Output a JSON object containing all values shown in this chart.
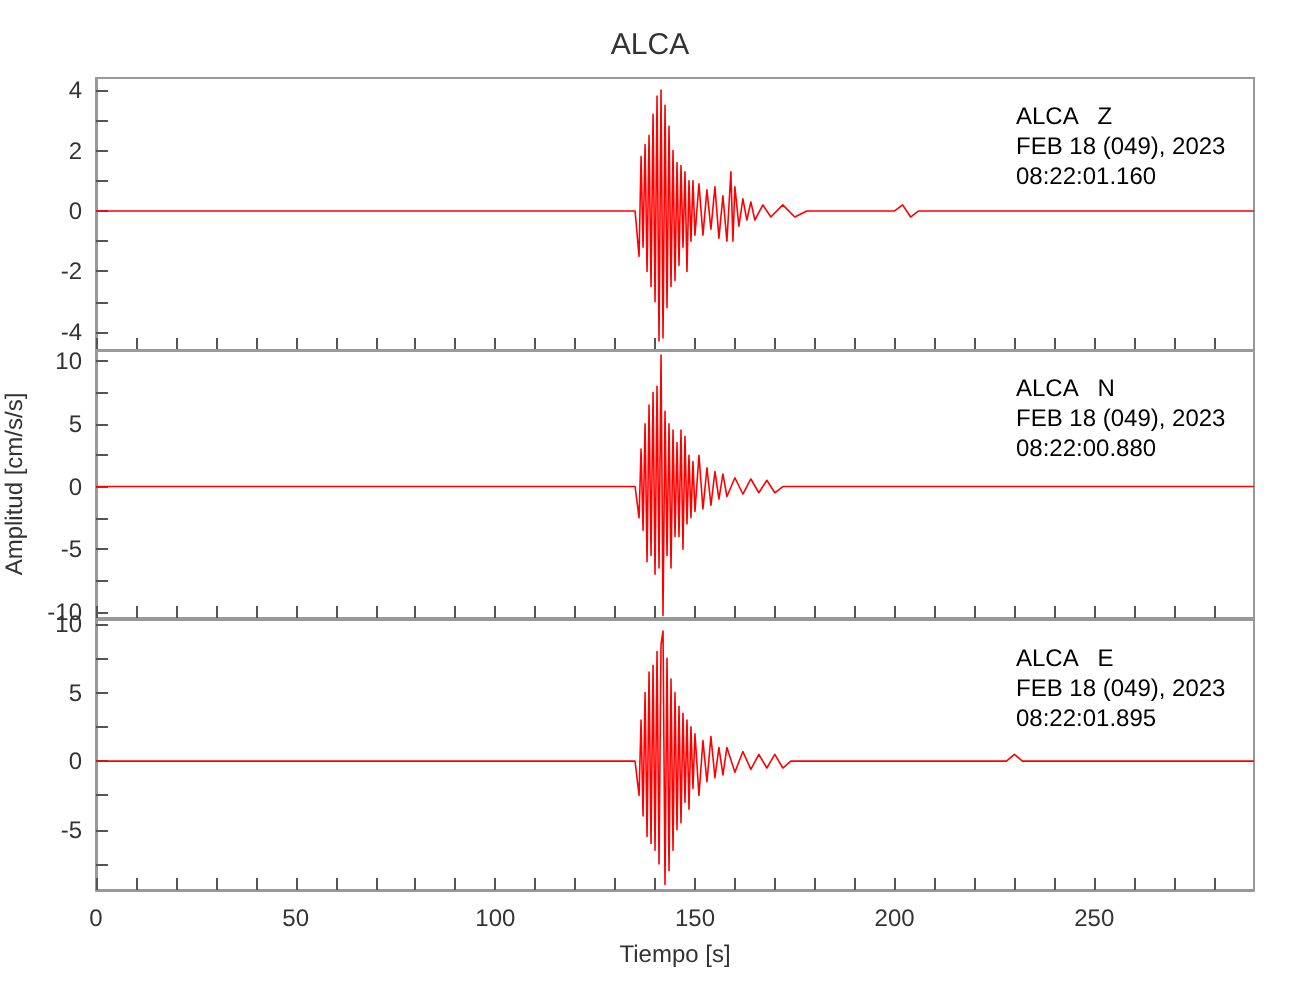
{
  "chart_data": [
    {
      "type": "line",
      "title": "ALCA",
      "marker": "none",
      "tick_labels": "y",
      "xlim": [
        0,
        290
      ],
      "xticks": [
        0,
        {
          "value": 10,
          "label": null
        },
        {
          "value": 20,
          "label": null
        },
        {
          "value": 30,
          "label": null
        },
        {
          "value": 40,
          "label": null
        },
        50,
        {
          "value": 60,
          "label": null
        },
        {
          "value": 70,
          "label": null
        },
        {
          "value": 80,
          "label": null
        },
        {
          "value": 90,
          "label": null
        },
        100,
        {
          "value": 110,
          "label": null
        },
        {
          "value": 120,
          "label": null
        },
        {
          "value": 130,
          "label": null
        },
        {
          "value": 140,
          "label": null
        },
        150,
        {
          "value": 160,
          "label": null
        },
        {
          "value": 170,
          "label": null
        },
        {
          "value": 180,
          "label": null
        },
        {
          "value": 190,
          "label": null
        },
        200,
        {
          "value": 210,
          "label": null
        },
        {
          "value": 220,
          "label": null
        },
        {
          "value": 230,
          "label": null
        },
        {
          "value": 240,
          "label": null
        },
        250,
        {
          "value": 260,
          "label": null
        },
        {
          "value": 270,
          "label": null
        },
        {
          "value": 280,
          "label": null
        }
      ],
      "ylim": [
        -4.6,
        4.4
      ],
      "yticks": [
        -4,
        {
          "value": -3,
          "label": null
        },
        -2,
        {
          "value": -1,
          "label": null
        },
        0,
        {
          "value": 1,
          "label": null
        },
        2,
        {
          "value": 3,
          "label": null
        },
        4
      ],
      "annotations": [
        "ALCA   Z",
        "FEB 18 (049), 2023",
        "08:22:01.160"
      ],
      "series": [
        {
          "color": "#ff0000",
          "x": [
            0,
            135,
            136,
            136.5,
            137,
            137.5,
            138,
            138.5,
            139,
            139.5,
            140,
            140.5,
            141,
            141.5,
            142,
            142.5,
            143,
            143.5,
            144,
            144.5,
            145,
            145.5,
            146,
            146.5,
            147,
            147.5,
            148,
            148.5,
            149,
            149.5,
            150,
            151,
            152,
            153,
            154,
            155,
            156,
            157,
            158,
            159,
            159.5,
            160,
            161,
            162,
            163,
            164,
            165,
            167,
            169,
            172,
            175,
            178,
            200,
            202,
            204,
            206,
            290
          ],
          "values": [
            0,
            0,
            -1.5,
            1.8,
            -1.2,
            2.2,
            -2.0,
            2.5,
            -2.5,
            3.2,
            -3.0,
            3.8,
            -4.3,
            4.0,
            -4.2,
            3.5,
            -3.2,
            2.8,
            -2.5,
            2.0,
            -2.3,
            1.6,
            -1.8,
            1.5,
            -1.2,
            1.3,
            -2.0,
            1.0,
            -1.0,
            1.0,
            -0.8,
            0.9,
            -0.8,
            0.7,
            -0.6,
            0.8,
            -0.9,
            0.5,
            -1.0,
            1.3,
            -1.0,
            0.8,
            -0.5,
            0.4,
            -0.3,
            0.3,
            -0.3,
            0.2,
            -0.2,
            0.2,
            -0.2,
            0,
            0,
            0.2,
            -0.2,
            0,
            0
          ]
        }
      ]
    },
    {
      "type": "line",
      "ylabel": "Amplitud [cm/s/s]",
      "marker": "none",
      "tick_labels": "y",
      "xlim": [
        0,
        290
      ],
      "xticks": [
        0,
        {
          "value": 10,
          "label": null
        },
        {
          "value": 20,
          "label": null
        },
        {
          "value": 30,
          "label": null
        },
        {
          "value": 40,
          "label": null
        },
        50,
        {
          "value": 60,
          "label": null
        },
        {
          "value": 70,
          "label": null
        },
        {
          "value": 80,
          "label": null
        },
        {
          "value": 90,
          "label": null
        },
        100,
        {
          "value": 110,
          "label": null
        },
        {
          "value": 120,
          "label": null
        },
        {
          "value": 130,
          "label": null
        },
        {
          "value": 140,
          "label": null
        },
        150,
        {
          "value": 160,
          "label": null
        },
        {
          "value": 170,
          "label": null
        },
        {
          "value": 180,
          "label": null
        },
        {
          "value": 190,
          "label": null
        },
        200,
        {
          "value": 210,
          "label": null
        },
        {
          "value": 220,
          "label": null
        },
        {
          "value": 230,
          "label": null
        },
        {
          "value": 240,
          "label": null
        },
        250,
        {
          "value": 260,
          "label": null
        },
        {
          "value": 270,
          "label": null
        },
        {
          "value": 280,
          "label": null
        }
      ],
      "ylim": [
        -10.5,
        10.9
      ],
      "yticks": [
        -10,
        {
          "value": -7.5,
          "label": null
        },
        -5,
        {
          "value": -2.5,
          "label": null
        },
        0,
        {
          "value": 2.5,
          "label": null
        },
        5,
        {
          "value": 7.5,
          "label": null
        },
        10
      ],
      "annotations": [
        "ALCA   N",
        "FEB 18 (049), 2023",
        "08:22:00.880"
      ],
      "series": [
        {
          "color": "#ff0000",
          "x": [
            0,
            135,
            136,
            136.5,
            137,
            137.5,
            138,
            138.5,
            139,
            139.5,
            140,
            140.5,
            141,
            141.5,
            142,
            142.5,
            143,
            143.5,
            144,
            144.5,
            145,
            145.5,
            146,
            146.5,
            147,
            147.5,
            148,
            148.5,
            149,
            149.5,
            150,
            151,
            152,
            153,
            154,
            155,
            156,
            157,
            158,
            160,
            162,
            164,
            166,
            168,
            170,
            172,
            290
          ],
          "values": [
            0,
            0,
            -2.5,
            3.0,
            -3.5,
            5.0,
            -6.0,
            6.5,
            -5.5,
            7.5,
            -7.0,
            8.0,
            -6.5,
            10.5,
            -10.3,
            6.0,
            -5.5,
            5.0,
            -6.5,
            4.5,
            -4.0,
            3.5,
            -4.0,
            4.5,
            -5.0,
            4.0,
            -3.0,
            2.5,
            -2.5,
            2.0,
            -2.0,
            2.5,
            -1.8,
            1.5,
            -1.5,
            1.2,
            -1.0,
            1.0,
            -0.8,
            0.7,
            -0.6,
            0.6,
            -0.5,
            0.5,
            -0.5,
            0,
            0
          ]
        }
      ]
    },
    {
      "type": "line",
      "xlabel": "Tiempo [s]",
      "marker": "none",
      "xlim": [
        0,
        290
      ],
      "xticks": [
        0,
        {
          "value": 10,
          "label": null
        },
        {
          "value": 20,
          "label": null
        },
        {
          "value": 30,
          "label": null
        },
        {
          "value": 40,
          "label": null
        },
        50,
        {
          "value": 60,
          "label": null
        },
        {
          "value": 70,
          "label": null
        },
        {
          "value": 80,
          "label": null
        },
        {
          "value": 90,
          "label": null
        },
        100,
        {
          "value": 110,
          "label": null
        },
        {
          "value": 120,
          "label": null
        },
        {
          "value": 130,
          "label": null
        },
        {
          "value": 140,
          "label": null
        },
        150,
        {
          "value": 160,
          "label": null
        },
        {
          "value": 170,
          "label": null
        },
        {
          "value": 180,
          "label": null
        },
        {
          "value": 190,
          "label": null
        },
        200,
        {
          "value": 210,
          "label": null
        },
        {
          "value": 220,
          "label": null
        },
        {
          "value": 230,
          "label": null
        },
        {
          "value": 240,
          "label": null
        },
        250,
        {
          "value": 260,
          "label": null
        },
        {
          "value": 270,
          "label": null
        },
        {
          "value": 280,
          "label": null
        }
      ],
      "ylim": [
        -9.4,
        10.3
      ],
      "yticks": [
        {
          "value": -7.5,
          "label": null
        },
        -5,
        {
          "value": -2.5,
          "label": null
        },
        0,
        {
          "value": 2.5,
          "label": null
        },
        5,
        {
          "value": 7.5,
          "label": null
        },
        10
      ],
      "annotations": [
        "ALCA   E",
        "FEB 18 (049), 2023",
        "08:22:01.895"
      ],
      "series": [
        {
          "color": "#ff0000",
          "x": [
            0,
            135,
            136,
            136.5,
            137,
            137.5,
            138,
            138.5,
            139,
            139.5,
            140,
            140.5,
            141,
            141.5,
            142,
            142.5,
            143,
            143.5,
            144,
            144.5,
            145,
            145.5,
            146,
            146.5,
            147,
            147.5,
            148,
            148.5,
            149,
            149.5,
            150,
            151,
            152,
            153,
            154,
            155,
            156,
            157,
            158,
            160,
            162,
            164,
            166,
            168,
            170,
            172,
            174,
            228,
            230,
            232,
            290
          ],
          "values": [
            0,
            0,
            -2.5,
            3.0,
            -4.0,
            5.0,
            -5.5,
            6.5,
            -6.0,
            7.0,
            -6.5,
            8.0,
            -7.5,
            8.5,
            9.5,
            -9.0,
            7.5,
            -8.0,
            6.0,
            -6.5,
            5.0,
            -5.0,
            4.0,
            -4.5,
            3.5,
            -3.0,
            3.0,
            -3.5,
            2.5,
            -2.0,
            2.0,
            -2.5,
            1.5,
            -1.5,
            1.8,
            -1.2,
            1.0,
            -1.0,
            1.0,
            -0.8,
            0.7,
            -0.6,
            0.5,
            -0.5,
            0.5,
            -0.5,
            0,
            0,
            0.5,
            0,
            0
          ]
        }
      ]
    }
  ]
}
